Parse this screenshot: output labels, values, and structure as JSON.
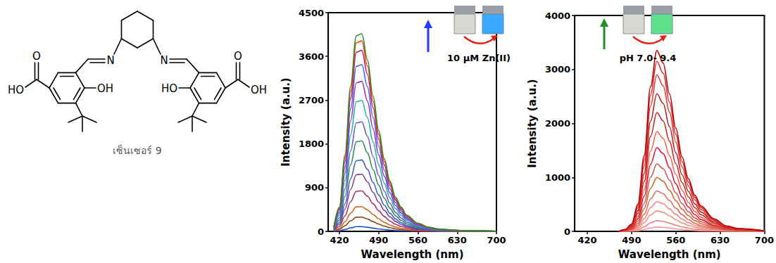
{
  "structure": {
    "label": "เซ็นเซอร์ 9",
    "atoms": {
      "imine_n": "N",
      "phenol_oh_left": "OH",
      "phenol_oh_right": "HO",
      "carbonyl_o": "O",
      "acid_oh_left": "HO",
      "acid_oh_right": "OH"
    }
  },
  "chart_data": [
    {
      "type": "line",
      "x_label": "Wavelength (nm)",
      "y_label": "Intensity (a.u.)",
      "annotations": [
        "10 μM Zn(II)"
      ],
      "grid": false,
      "xlim": [
        400,
        700
      ],
      "xticks": [
        420,
        490,
        560,
        630,
        700
      ],
      "ylim": [
        0,
        4500
      ],
      "yticks": [
        0,
        900,
        1800,
        2700,
        3600,
        4500
      ],
      "x": [
        410,
        420,
        430,
        440,
        450,
        460,
        470,
        480,
        490,
        500,
        510,
        520,
        530,
        540,
        560,
        580,
        600,
        640,
        700
      ],
      "series": [
        {
          "color": "#1f4fd1",
          "values": [
            2,
            12,
            38,
            72,
            97,
            98,
            85,
            67,
            50,
            36,
            25,
            17,
            12,
            8,
            4,
            2,
            1,
            0,
            0
          ]
        },
        {
          "color": "#8b4513",
          "values": [
            6,
            36,
            114,
            216,
            291,
            294,
            255,
            201,
            150,
            108,
            75,
            51,
            36,
            24,
            12,
            6,
            3,
            1,
            0
          ]
        },
        {
          "color": "#d2691e",
          "values": [
            10,
            62,
            198,
            374,
            504,
            510,
            442,
            348,
            260,
            187,
            130,
            88,
            62,
            42,
            21,
            10,
            5,
            2,
            1
          ]
        },
        {
          "color": "#b03060",
          "values": [
            17,
            102,
            323,
            612,
            825,
            833,
            723,
            570,
            425,
            306,
            213,
            145,
            102,
            68,
            34,
            17,
            9,
            3,
            1
          ]
        },
        {
          "color": "#7b3fa0",
          "values": [
            24,
            144,
            456,
            864,
            1164,
            1176,
            1020,
            804,
            600,
            432,
            300,
            204,
            144,
            96,
            48,
            24,
            12,
            5,
            1
          ]
        },
        {
          "color": "#3a5fcd",
          "values": [
            30,
            180,
            570,
            1080,
            1455,
            1470,
            1275,
            1005,
            750,
            540,
            375,
            255,
            180,
            120,
            60,
            30,
            15,
            6,
            2
          ]
        },
        {
          "color": "#2e8b57",
          "values": [
            38,
            228,
            722,
            1368,
            1843,
            1862,
            1615,
            1273,
            950,
            684,
            475,
            323,
            228,
            152,
            76,
            38,
            19,
            8,
            2
          ]
        },
        {
          "color": "#6a5acd",
          "values": [
            46,
            276,
            874,
            1656,
            2231,
            2254,
            1955,
            1541,
            1150,
            828,
            575,
            391,
            276,
            184,
            92,
            46,
            23,
            9,
            2
          ]
        },
        {
          "color": "#20b2aa",
          "values": [
            55,
            330,
            1045,
            1980,
            2668,
            2695,
            2338,
            1843,
            1375,
            990,
            688,
            468,
            330,
            220,
            110,
            55,
            28,
            11,
            3
          ]
        },
        {
          "color": "#9932cc",
          "values": [
            63,
            378,
            1197,
            2268,
            3056,
            3087,
            2678,
            2111,
            1575,
            1134,
            788,
            536,
            378,
            252,
            126,
            63,
            32,
            13,
            3
          ]
        },
        {
          "color": "#4169e1",
          "values": [
            70,
            420,
            1330,
            2520,
            3395,
            3430,
            2975,
            2345,
            1750,
            1260,
            875,
            595,
            420,
            280,
            140,
            70,
            35,
            14,
            4
          ]
        },
        {
          "color": "#c71585",
          "values": [
            76,
            456,
            1444,
            2736,
            3686,
            3724,
            3230,
            2546,
            1900,
            1368,
            950,
            646,
            456,
            304,
            152,
            76,
            38,
            15,
            4
          ]
        },
        {
          "color": "#ff4500",
          "values": [
            80,
            480,
            1520,
            2880,
            3880,
            3920,
            3400,
            2680,
            2000,
            1440,
            1000,
            680,
            480,
            320,
            160,
            80,
            40,
            16,
            4
          ]
        },
        {
          "color": "#228b22",
          "values": [
            83,
            498,
            1577,
            2988,
            4026,
            4067,
            3528,
            2781,
            2075,
            1494,
            1038,
            706,
            498,
            332,
            166,
            83,
            42,
            17,
            4
          ]
        }
      ]
    },
    {
      "type": "line",
      "x_label": "Wavelength (nm)",
      "y_label": "Intensity (a.u.)",
      "annotations": [
        "pH 7.0- 9.4"
      ],
      "grid": false,
      "xlim": [
        400,
        700
      ],
      "xticks": [
        420,
        490,
        560,
        630,
        700
      ],
      "ylim": [
        0,
        4000
      ],
      "yticks": [
        0,
        1000,
        2000,
        3000,
        4000
      ],
      "x": [
        470,
        480,
        490,
        500,
        510,
        520,
        530,
        540,
        550,
        560,
        570,
        580,
        590,
        600,
        620,
        640,
        660,
        700
      ],
      "series": [
        {
          "color": "#ff9999",
          "values": [
            0,
            1,
            3,
            12,
            34,
            64,
            80,
            74,
            61,
            46,
            33,
            23,
            16,
            11,
            6,
            2,
            1,
            0
          ]
        },
        {
          "color": "#f08080",
          "values": [
            0,
            2,
            8,
            30,
            84,
            160,
            200,
            186,
            152,
            114,
            82,
            58,
            40,
            28,
            14,
            6,
            3,
            1
          ]
        },
        {
          "color": "#e9967a",
          "values": [
            0,
            4,
            15,
            57,
            160,
            304,
            380,
            353,
            289,
            217,
            156,
            110,
            76,
            53,
            27,
            11,
            6,
            1
          ]
        },
        {
          "color": "#ff7f7f",
          "values": [
            0,
            6,
            22,
            83,
            231,
            440,
            550,
            512,
            418,
            314,
            226,
            160,
            110,
            77,
            39,
            17,
            8,
            2
          ]
        },
        {
          "color": "#e06666",
          "values": [
            0,
            8,
            30,
            113,
            315,
            600,
            750,
            698,
            570,
            428,
            308,
            218,
            150,
            105,
            53,
            23,
            11,
            2
          ]
        },
        {
          "color": "#d2691e",
          "values": [
            0,
            10,
            40,
            150,
            420,
            800,
            1000,
            930,
            760,
            570,
            410,
            290,
            200,
            140,
            70,
            30,
            15,
            3
          ]
        },
        {
          "color": "#cd5c5c",
          "values": [
            0,
            13,
            50,
            188,
            525,
            1000,
            1250,
            1163,
            950,
            713,
            513,
            363,
            250,
            175,
            88,
            38,
            19,
            4
          ]
        },
        {
          "color": "#dc143c",
          "values": [
            0,
            16,
            62,
            233,
            651,
            1240,
            1550,
            1442,
            1178,
            884,
            636,
            450,
            310,
            217,
            109,
            47,
            23,
            5
          ]
        },
        {
          "color": "#ff6347",
          "values": [
            0,
            19,
            74,
            278,
            777,
            1480,
            1850,
            1721,
            1406,
            1055,
            759,
            537,
            370,
            259,
            130,
            56,
            28,
            6
          ]
        },
        {
          "color": "#c62828",
          "values": [
            0,
            22,
            88,
            330,
            924,
            1760,
            2200,
            2046,
            1672,
            1254,
            902,
            638,
            440,
            308,
            154,
            66,
            33,
            7
          ]
        },
        {
          "color": "#b22222",
          "values": [
            0,
            26,
            102,
            383,
            1071,
            2040,
            2550,
            2372,
            1938,
            1454,
            1046,
            740,
            510,
            357,
            179,
            77,
            38,
            8
          ]
        },
        {
          "color": "#e53935",
          "values": [
            0,
            29,
            116,
            435,
            1218,
            2320,
            2900,
            2697,
            2204,
            1653,
            1189,
            841,
            580,
            406,
            203,
            87,
            44,
            9
          ]
        },
        {
          "color": "#d32f2f",
          "values": [
            0,
            32,
            126,
            473,
            1323,
            2520,
            3150,
            2930,
            2394,
            1796,
            1292,
            914,
            630,
            441,
            221,
            95,
            47,
            9
          ]
        },
        {
          "color": "#c00000",
          "values": [
            0,
            34,
            134,
            503,
            1407,
            2680,
            3350,
            3116,
            2546,
            1910,
            1374,
            972,
            670,
            469,
            235,
            101,
            50,
            10
          ]
        }
      ]
    }
  ]
}
